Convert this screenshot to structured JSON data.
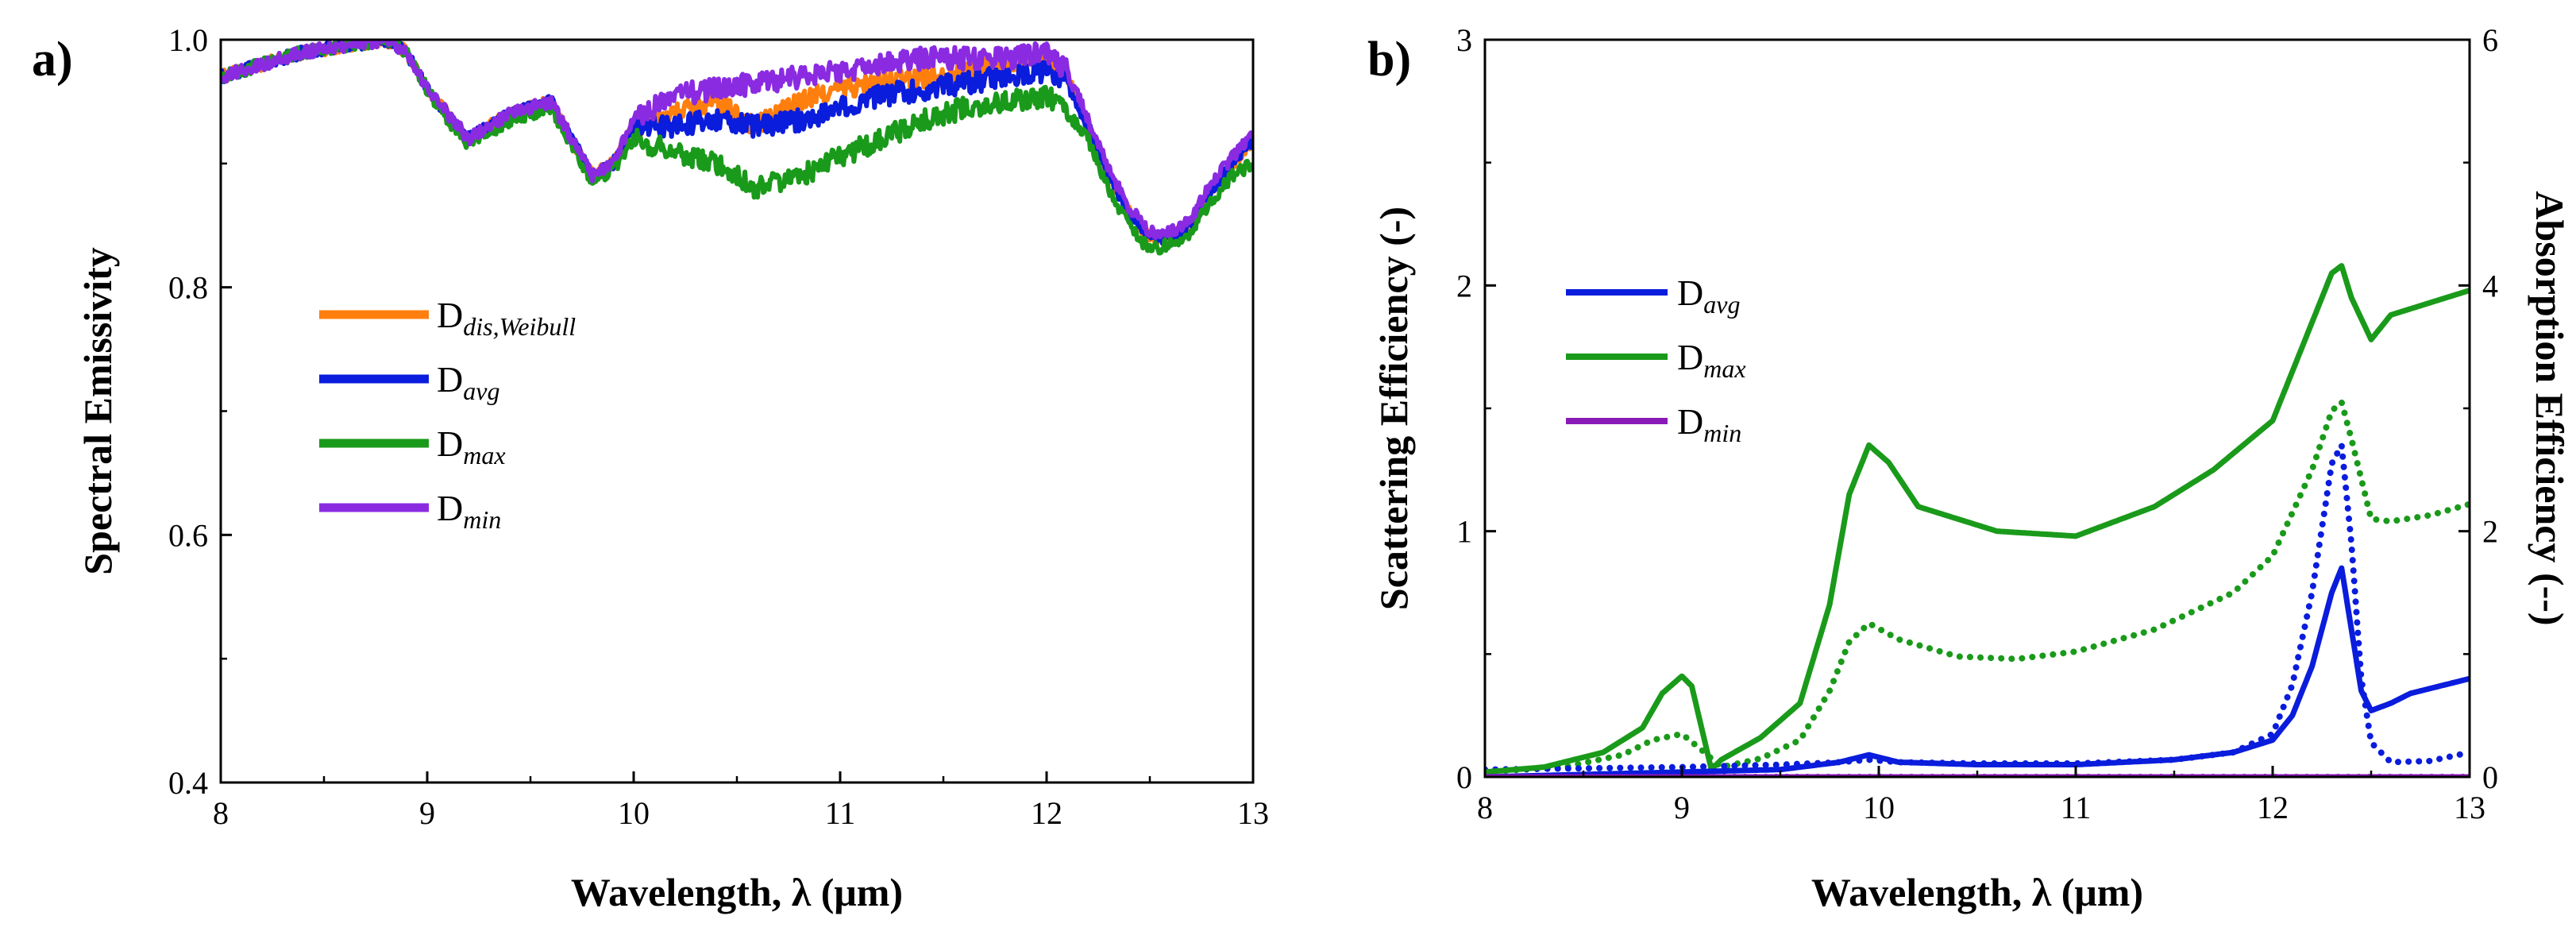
{
  "panels": [
    {
      "id": "a",
      "label": "a)"
    },
    {
      "id": "b",
      "label": "b)"
    }
  ],
  "chart_data": [
    {
      "type": "line",
      "panel": "a)",
      "xlabel": "Wavelength, λ (μm)",
      "ylabel": "Spectral Emissivity",
      "xlim": [
        8,
        13
      ],
      "ylim": [
        0.4,
        1.0
      ],
      "xticks": [
        "8",
        "9",
        "10",
        "11",
        "12",
        "13"
      ],
      "yticks": [
        "0.4",
        "0.6",
        "0.8",
        "1.0"
      ],
      "legend_position": "center-left",
      "noisy": true,
      "series": [
        {
          "base": "D",
          "sub": "dis,Weibull",
          "color": "#ff7f0e",
          "x": [
            8.0,
            8.2,
            8.4,
            8.6,
            8.8,
            8.9,
            9.0,
            9.1,
            9.2,
            9.4,
            9.6,
            9.8,
            9.9,
            10.0,
            10.2,
            10.4,
            10.6,
            10.8,
            11.0,
            11.2,
            11.4,
            11.6,
            11.8,
            12.0,
            12.1,
            12.2,
            12.3,
            12.4,
            12.5,
            12.6,
            12.7,
            12.8,
            12.9,
            13.0
          ],
          "y": [
            0.97,
            0.98,
            0.99,
            0.995,
            1.0,
            0.99,
            0.96,
            0.94,
            0.92,
            0.94,
            0.95,
            0.89,
            0.9,
            0.93,
            0.94,
            0.95,
            0.93,
            0.95,
            0.96,
            0.965,
            0.97,
            0.975,
            0.98,
            0.985,
            0.97,
            0.93,
            0.89,
            0.86,
            0.84,
            0.84,
            0.85,
            0.88,
            0.9,
            0.92
          ]
        },
        {
          "base": "D",
          "sub": "avg",
          "color": "#0a1cdc",
          "x": [
            8.0,
            8.2,
            8.4,
            8.6,
            8.8,
            8.9,
            9.0,
            9.1,
            9.2,
            9.4,
            9.6,
            9.8,
            9.9,
            10.0,
            10.2,
            10.4,
            10.6,
            10.8,
            11.0,
            11.2,
            11.4,
            11.6,
            11.8,
            12.0,
            12.1,
            12.2,
            12.3,
            12.4,
            12.5,
            12.6,
            12.7,
            12.8,
            12.9,
            13.0
          ],
          "y": [
            0.97,
            0.98,
            0.99,
            0.995,
            1.0,
            0.99,
            0.96,
            0.94,
            0.92,
            0.94,
            0.95,
            0.89,
            0.9,
            0.93,
            0.93,
            0.935,
            0.93,
            0.935,
            0.945,
            0.955,
            0.96,
            0.965,
            0.97,
            0.975,
            0.965,
            0.93,
            0.89,
            0.86,
            0.84,
            0.84,
            0.85,
            0.88,
            0.9,
            0.92
          ]
        },
        {
          "base": "D",
          "sub": "max",
          "color": "#1a9a1a",
          "x": [
            8.0,
            8.2,
            8.4,
            8.6,
            8.8,
            8.9,
            9.0,
            9.1,
            9.2,
            9.4,
            9.6,
            9.8,
            9.9,
            10.0,
            10.2,
            10.4,
            10.6,
            10.8,
            11.0,
            11.2,
            11.4,
            11.6,
            11.8,
            12.0,
            12.1,
            12.2,
            12.3,
            12.4,
            12.5,
            12.6,
            12.7,
            12.8,
            12.9,
            13.0
          ],
          "y": [
            0.97,
            0.98,
            0.99,
            0.995,
            1.0,
            0.99,
            0.96,
            0.935,
            0.915,
            0.935,
            0.945,
            0.885,
            0.895,
            0.92,
            0.91,
            0.9,
            0.88,
            0.89,
            0.905,
            0.92,
            0.935,
            0.945,
            0.95,
            0.955,
            0.94,
            0.92,
            0.88,
            0.85,
            0.83,
            0.835,
            0.845,
            0.87,
            0.89,
            0.9
          ]
        },
        {
          "base": "D",
          "sub": "min",
          "color": "#8a2be2",
          "x": [
            8.0,
            8.2,
            8.4,
            8.6,
            8.8,
            8.9,
            9.0,
            9.1,
            9.2,
            9.4,
            9.6,
            9.8,
            9.9,
            10.0,
            10.2,
            10.4,
            10.6,
            10.8,
            11.0,
            11.2,
            11.4,
            11.6,
            11.8,
            12.0,
            12.1,
            12.2,
            12.3,
            12.4,
            12.5,
            12.6,
            12.7,
            12.8,
            12.9,
            13.0
          ],
          "y": [
            0.97,
            0.98,
            0.99,
            0.995,
            1.0,
            0.99,
            0.96,
            0.94,
            0.92,
            0.94,
            0.95,
            0.89,
            0.9,
            0.935,
            0.955,
            0.96,
            0.965,
            0.97,
            0.975,
            0.98,
            0.985,
            0.985,
            0.985,
            0.99,
            0.975,
            0.935,
            0.895,
            0.865,
            0.845,
            0.845,
            0.855,
            0.885,
            0.905,
            0.925
          ]
        }
      ]
    },
    {
      "type": "line",
      "panel": "b)",
      "xlabel": "Wavelength, λ (μm)",
      "ylabel": "Scattering Efficiency (-)",
      "y2label": "Absorption Efficiency (--)",
      "xlim": [
        8,
        13
      ],
      "ylim": [
        0,
        3
      ],
      "y2lim": [
        0,
        6
      ],
      "xticks": [
        "8",
        "9",
        "10",
        "11",
        "12",
        "13"
      ],
      "yticks": [
        "0",
        "1",
        "2",
        "3"
      ],
      "y2ticks": [
        "0",
        "2",
        "4",
        "6"
      ],
      "legend_position": "upper-left",
      "legend": [
        {
          "base": "D",
          "sub": "avg",
          "color": "#0a1cdc"
        },
        {
          "base": "D",
          "sub": "max",
          "color": "#1a9a1a"
        },
        {
          "base": "D",
          "sub": "min",
          "color": "#8a1ab8"
        }
      ],
      "series": [
        {
          "base": "D",
          "sub": "avg",
          "kind": "scattering",
          "axis": "left",
          "dash": "solid",
          "color": "#0a1cdc",
          "x": [
            8.0,
            8.5,
            9.0,
            9.5,
            9.8,
            9.95,
            10.1,
            10.5,
            11.0,
            11.5,
            11.8,
            12.0,
            12.1,
            12.2,
            12.3,
            12.35,
            12.4,
            12.45,
            12.5,
            12.6,
            12.7,
            12.8,
            12.9,
            13.0
          ],
          "y": [
            0.0,
            0.01,
            0.02,
            0.03,
            0.06,
            0.09,
            0.06,
            0.05,
            0.05,
            0.07,
            0.1,
            0.15,
            0.25,
            0.45,
            0.75,
            0.85,
            0.6,
            0.35,
            0.27,
            0.3,
            0.34,
            0.36,
            0.38,
            0.4
          ]
        },
        {
          "base": "D",
          "sub": "max",
          "kind": "scattering",
          "axis": "left",
          "dash": "solid",
          "color": "#1a9a1a",
          "x": [
            8.0,
            8.3,
            8.6,
            8.8,
            8.9,
            9.0,
            9.05,
            9.1,
            9.15,
            9.2,
            9.4,
            9.6,
            9.75,
            9.85,
            9.95,
            10.05,
            10.2,
            10.6,
            11.0,
            11.4,
            11.7,
            12.0,
            12.2,
            12.3,
            12.35,
            12.4,
            12.5,
            12.6,
            12.8,
            13.0
          ],
          "y": [
            0.02,
            0.04,
            0.1,
            0.2,
            0.34,
            0.41,
            0.37,
            0.2,
            0.03,
            0.07,
            0.16,
            0.3,
            0.7,
            1.15,
            1.35,
            1.28,
            1.1,
            1.0,
            0.98,
            1.1,
            1.25,
            1.45,
            1.85,
            2.05,
            2.08,
            1.95,
            1.78,
            1.88,
            1.93,
            1.98
          ]
        },
        {
          "base": "D",
          "sub": "min",
          "kind": "scattering",
          "axis": "left",
          "dash": "solid",
          "color": "#8a1ab8",
          "x": [
            8.0,
            13.0
          ],
          "y": [
            0.0,
            0.0
          ]
        },
        {
          "base": "D",
          "sub": "avg",
          "kind": "absorption",
          "axis": "right",
          "dash": "dotted",
          "color": "#0a1cdc",
          "x": [
            8.0,
            8.5,
            9.0,
            9.5,
            9.8,
            9.95,
            10.1,
            10.5,
            11.0,
            11.5,
            11.8,
            12.0,
            12.1,
            12.2,
            12.3,
            12.35,
            12.4,
            12.45,
            12.5,
            12.6,
            12.8,
            13.0
          ],
          "y": [
            0.06,
            0.07,
            0.08,
            0.1,
            0.12,
            0.14,
            0.12,
            0.11,
            0.11,
            0.14,
            0.2,
            0.35,
            0.75,
            1.5,
            2.55,
            2.7,
            1.9,
            0.8,
            0.28,
            0.12,
            0.13,
            0.2
          ]
        },
        {
          "base": "D",
          "sub": "max",
          "kind": "absorption",
          "axis": "right",
          "dash": "dotted",
          "color": "#1a9a1a",
          "x": [
            8.0,
            8.4,
            8.7,
            8.85,
            9.0,
            9.1,
            9.2,
            9.4,
            9.6,
            9.75,
            9.85,
            9.95,
            10.1,
            10.4,
            10.7,
            11.0,
            11.4,
            11.8,
            12.0,
            12.2,
            12.3,
            12.35,
            12.4,
            12.5,
            12.6,
            12.8,
            13.0
          ],
          "y": [
            0.04,
            0.08,
            0.18,
            0.3,
            0.35,
            0.22,
            0.08,
            0.15,
            0.3,
            0.7,
            1.1,
            1.25,
            1.12,
            0.98,
            0.96,
            1.02,
            1.2,
            1.5,
            1.8,
            2.5,
            2.98,
            3.05,
            2.75,
            2.1,
            2.08,
            2.13,
            2.22
          ]
        },
        {
          "base": "D",
          "sub": "min",
          "kind": "absorption",
          "axis": "right",
          "dash": "dotted",
          "color": "#8a1ab8",
          "x": [
            8.0,
            13.0
          ],
          "y": [
            0.0,
            0.0
          ]
        }
      ]
    }
  ]
}
